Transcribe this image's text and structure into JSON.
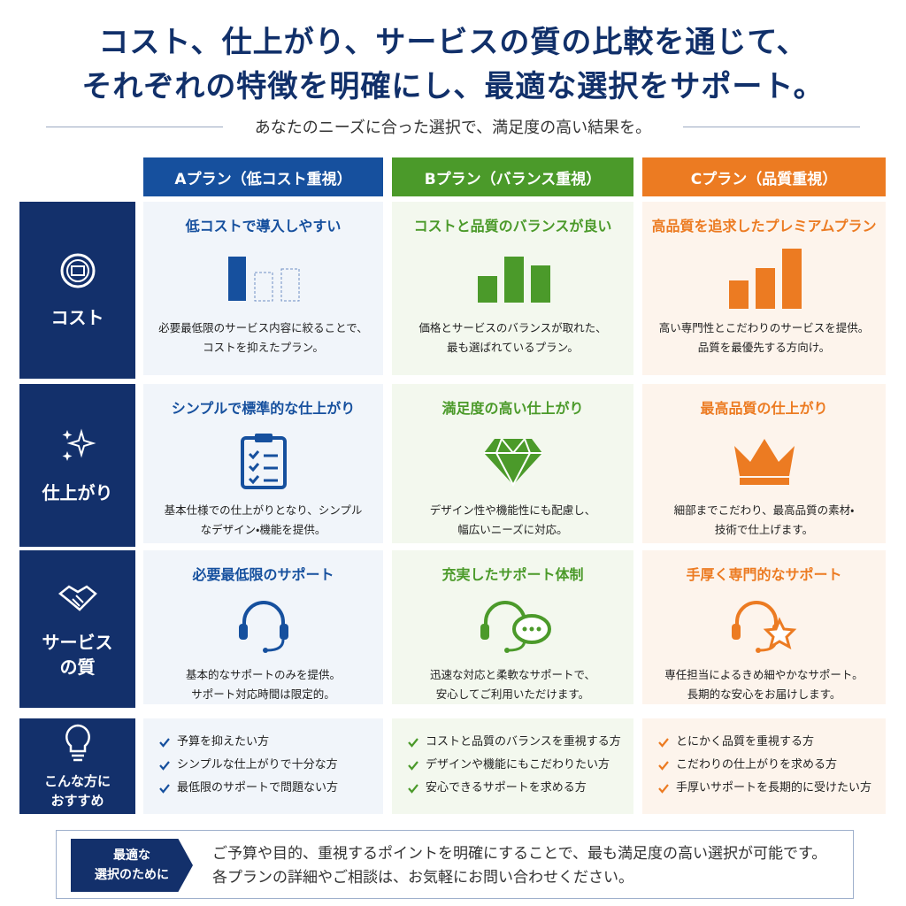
{
  "header": {
    "title": [
      "コスト、仕上がり、サービスの質の比較を通じて、",
      "それぞれの特徴を明確にし、最適な選択をサポート。"
    ],
    "subtitle": "あなたのニーズに合った選択で、満足度の高い結果を。"
  },
  "plans": [
    "Aプラン（低コスト重視）",
    "Bプラン（バランス重視）",
    "Cプラン（品質重視）"
  ],
  "rows": [
    {
      "label": [
        "コスト"
      ],
      "cells": [
        {
          "heading": "低コストで導入しやすい",
          "description": [
            "必要最低限のサービス内容に絞ることで、",
            "コストを抑えたプラン。"
          ]
        },
        {
          "heading": "コストと品質のバランスが良い",
          "description": [
            "価格とサービスのバランスが取れた、",
            "最も選ばれているプラン。"
          ]
        },
        {
          "heading": "高品質を追求したプレミアムプラン",
          "description": [
            "高い専門性とこだわりのサービスを提供。",
            "品質を最優先する方向け。"
          ]
        }
      ]
    },
    {
      "label": [
        "仕上がり"
      ],
      "cells": [
        {
          "heading": "シンプルで標準的な仕上がり",
          "description": [
            "基本仕様での仕上がりとなり、シンプル",
            "なデザイン・機能を提供。"
          ]
        },
        {
          "heading": "満足度の高い仕上がり",
          "description": [
            "デザイン性や機能性にも配慮し、",
            "幅広いニーズに対応。"
          ]
        },
        {
          "heading": "最高品質の仕上がり",
          "description": [
            "細部までこだわり、最高品質の素材・",
            "技術で仕上げます。"
          ]
        }
      ]
    },
    {
      "label": [
        "サービス",
        "の質"
      ],
      "cells": [
        {
          "heading": "必要最低限のサポート",
          "description": [
            "基本的なサポートのみを提供。",
            "サポート対応時間は限定的。"
          ]
        },
        {
          "heading": "充実したサポート体制",
          "description": [
            "迅速な対応と柔軟なサポートで、",
            "安心してご利用いただけます。"
          ]
        },
        {
          "heading": "手厚く専門的なサポート",
          "description": [
            "専任担当によるきめ細やかなサポート。",
            "長期的な安心をお届けします。"
          ]
        }
      ]
    }
  ],
  "recommend": {
    "label": [
      "こんな方に",
      "おすすめ"
    ],
    "items": [
      [
        "予算を抑えたい方",
        "シンプルな仕上がりで十分な方",
        "最低限のサポートで問題ない方"
      ],
      [
        "コストと品質のバランスを重視する方",
        "デザインや機能にもこだわりたい方",
        "安心できるサポートを求める方"
      ],
      [
        "とにかく品質を重視する方",
        "こだわりの仕上がりを求める方",
        "手厚いサポートを長期的に受けたい方"
      ]
    ]
  },
  "footer": {
    "badge": [
      "最適な",
      "選択のために"
    ],
    "text": [
      "ご予算や目的、重視するポイントを明確にすることで、最も満足度の高い選択が可能です。",
      "各プランの詳細やご相談は、お気軽にお問い合わせください。"
    ]
  }
}
